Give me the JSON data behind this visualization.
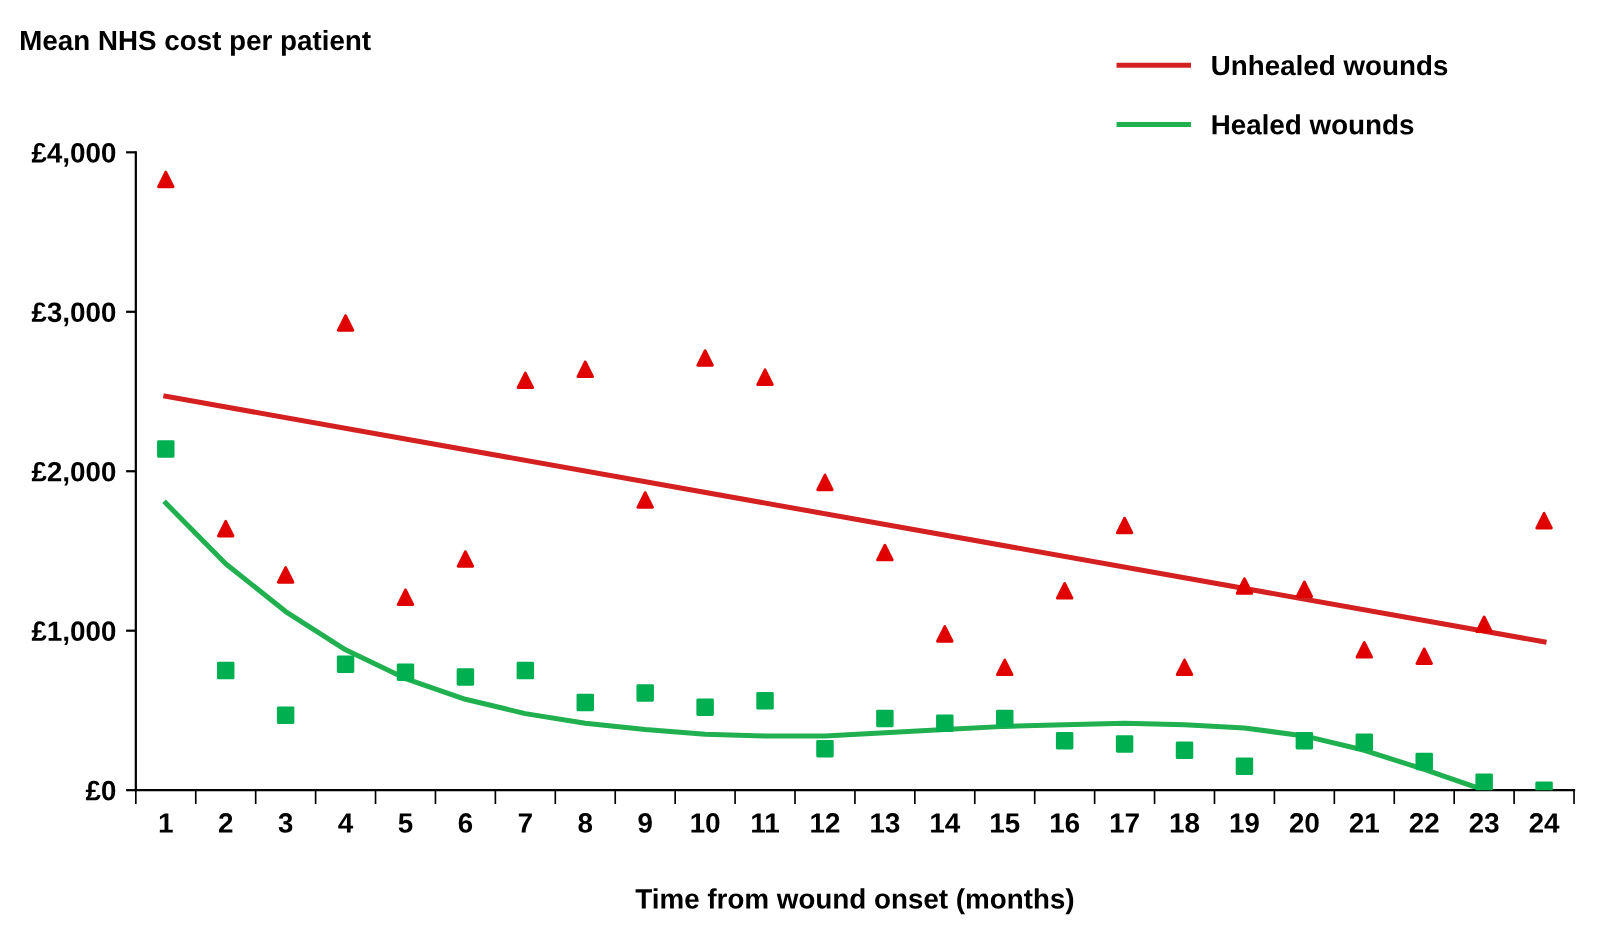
{
  "chart_data": {
    "type": "scatter",
    "ylabel": "Mean NHS cost per patient",
    "xlabel": "Time from wound onset (months)",
    "categories": [
      "1",
      "2",
      "3",
      "4",
      "5",
      "6",
      "7",
      "8",
      "9",
      "10",
      "11",
      "12",
      "13",
      "14",
      "15",
      "16",
      "17",
      "18",
      "19",
      "20",
      "21",
      "22",
      "23",
      "24"
    ],
    "ylim": [
      0,
      4000
    ],
    "yticks": [
      {
        "value": 0,
        "label": "£0"
      },
      {
        "value": 1000,
        "label": "£1,000"
      },
      {
        "value": 2000,
        "label": "£2,000"
      },
      {
        "value": 3000,
        "label": "£3,000"
      },
      {
        "value": 4000,
        "label": "£4,000"
      }
    ],
    "grid": false,
    "legend": "top right",
    "series": [
      {
        "marker": "triangle",
        "color": "#e00000",
        "values": [
          3830,
          1640,
          1350,
          2930,
          1210,
          1450,
          2570,
          2640,
          1820,
          2710,
          2590,
          1930,
          1490,
          980,
          770,
          1250,
          1660,
          770,
          1280,
          1260,
          880,
          840,
          1040,
          1690
        ]
      },
      {
        "marker": "square",
        "color": "#00b050",
        "values": [
          2140,
          750,
          470,
          790,
          740,
          710,
          750,
          550,
          610,
          520,
          560,
          260,
          450,
          420,
          450,
          310,
          290,
          250,
          150,
          310,
          300,
          180,
          50,
          0
        ]
      },
      {
        "type": "line",
        "name": "Unhealed wounds",
        "color": "#d42020",
        "marker": "none",
        "line_style": "solid",
        "x": [
          "1",
          "24"
        ],
        "values": [
          2470,
          930
        ]
      },
      {
        "type": "line",
        "name": "Healed wounds",
        "color": "#20b050",
        "marker": "none",
        "line_style": "solid",
        "values": [
          1800,
          1420,
          1120,
          880,
          700,
          570,
          480,
          420,
          380,
          350,
          340,
          340,
          360,
          380,
          400,
          410,
          420,
          410,
          390,
          340,
          250,
          130,
          0,
          null
        ]
      }
    ]
  }
}
